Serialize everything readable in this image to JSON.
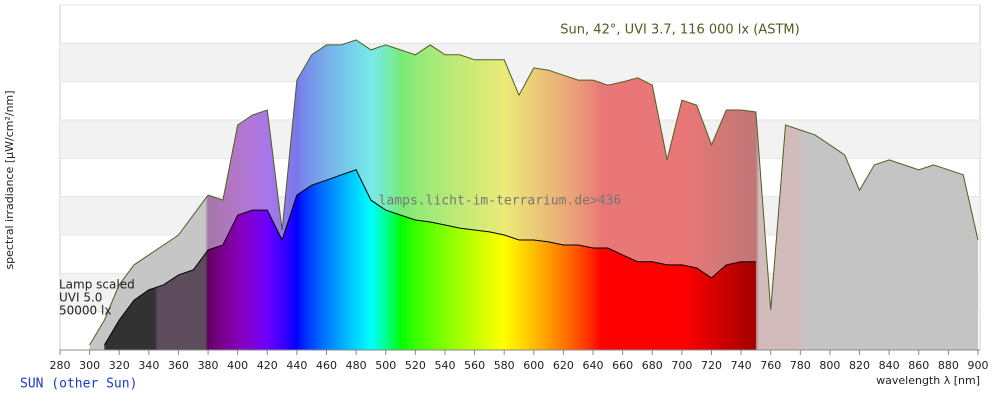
{
  "chart_data": {
    "type": "spectrum",
    "annotation": "Sun, 42°, UVI 3.7, 116 000 lx (ASTM)",
    "watermark": "lamps.licht-im-terrarium.de>436",
    "lamp_notes": [
      "Lamp scaled",
      "UVI 5.0",
      "50000 lx"
    ],
    "x_label": "wavelength λ [nm]",
    "y_label": "spectral irradiance [µW/cm²/nm]",
    "footer_link": "SUN (other Sun)",
    "xlim": [
      280,
      900
    ],
    "ylim": [
      0,
      9
    ],
    "xticks": [
      280,
      300,
      320,
      340,
      360,
      380,
      400,
      420,
      440,
      460,
      480,
      500,
      520,
      540,
      560,
      580,
      600,
      620,
      640,
      660,
      680,
      700,
      720,
      740,
      760,
      780,
      800,
      820,
      840,
      860,
      880,
      900
    ],
    "ygrid": [
      0,
      1,
      2,
      3,
      4,
      5,
      6,
      7,
      8,
      9
    ],
    "series": [
      {
        "name": "Sun",
        "color": "#4f5f1f",
        "fill_opacity": 0.45,
        "x": [
          300,
          310,
          320,
          330,
          340,
          350,
          360,
          370,
          380,
          390,
          400,
          410,
          420,
          430,
          440,
          450,
          460,
          470,
          480,
          490,
          500,
          510,
          520,
          530,
          540,
          550,
          560,
          570,
          580,
          590,
          600,
          610,
          620,
          630,
          640,
          650,
          660,
          670,
          680,
          690,
          700,
          710,
          720,
          730,
          740,
          750,
          760,
          770,
          780,
          790,
          800,
          810,
          820,
          830,
          840,
          850,
          860,
          870,
          880,
          890,
          900
        ],
        "values": [
          0.13,
          0.78,
          1.7,
          2.22,
          2.48,
          2.74,
          3.0,
          3.52,
          4.04,
          3.91,
          5.87,
          6.13,
          6.26,
          3.13,
          7.04,
          7.7,
          7.96,
          7.96,
          8.09,
          7.83,
          7.96,
          7.83,
          7.7,
          7.96,
          7.7,
          7.7,
          7.57,
          7.57,
          7.57,
          6.65,
          7.36,
          7.3,
          7.17,
          7.04,
          7.04,
          6.91,
          6.99,
          7.1,
          6.91,
          4.96,
          6.52,
          6.39,
          5.35,
          6.26,
          6.26,
          6.21,
          1.04,
          5.87,
          5.74,
          5.61,
          5.35,
          5.09,
          4.17,
          4.83,
          4.96,
          4.83,
          4.7,
          4.83,
          4.7,
          4.57,
          2.87
        ]
      },
      {
        "name": "Lamp",
        "color": "#000000",
        "fill_opacity": 1,
        "x": [
          310,
          320,
          330,
          340,
          350,
          360,
          370,
          380,
          390,
          400,
          410,
          420,
          430,
          440,
          450,
          460,
          470,
          480,
          490,
          500,
          510,
          520,
          530,
          540,
          550,
          560,
          570,
          580,
          590,
          600,
          610,
          620,
          630,
          640,
          650,
          660,
          670,
          680,
          690,
          700,
          710,
          720,
          730,
          740,
          750
        ],
        "values": [
          0.13,
          0.78,
          1.3,
          1.57,
          1.7,
          1.96,
          2.09,
          2.61,
          2.74,
          3.52,
          3.65,
          3.65,
          2.87,
          4.04,
          4.3,
          4.43,
          4.57,
          4.7,
          3.91,
          3.65,
          3.52,
          3.39,
          3.34,
          3.26,
          3.18,
          3.13,
          3.08,
          3.0,
          2.87,
          2.87,
          2.82,
          2.74,
          2.74,
          2.66,
          2.66,
          2.48,
          2.3,
          2.3,
          2.22,
          2.22,
          2.14,
          1.88,
          2.22,
          2.3,
          2.3
        ]
      }
    ]
  }
}
